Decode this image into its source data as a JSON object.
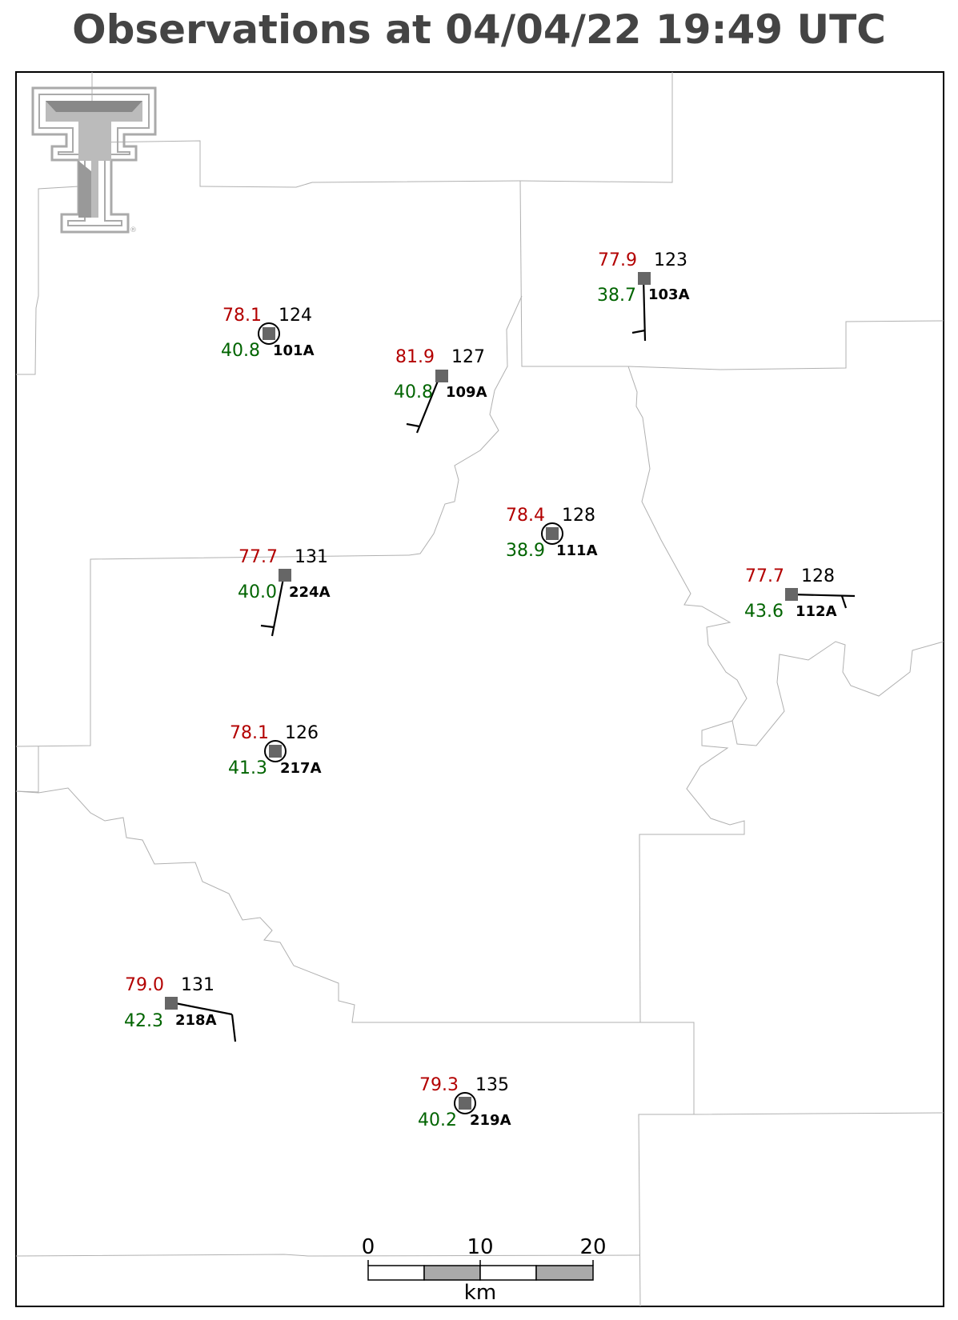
{
  "title": "Observations at 04/04/22 19:49 UTC",
  "colors": {
    "temperature": "#b30000",
    "dewpoint": "#006400",
    "pressure": "#000000",
    "station_id": "#000000",
    "station_marker": "#666666",
    "county_lines": "#b0b0b0",
    "logo": "#aaaaaa"
  },
  "logo": {
    "name": "Texas Tech Double T",
    "icon": "double-t-logo",
    "mark": "®"
  },
  "stations": [
    {
      "id": "101A",
      "temp": "78.1",
      "dewpoint": "40.8",
      "pressure": "124",
      "wind": "calm"
    },
    {
      "id": "109A",
      "temp": "81.9",
      "dewpoint": "40.8",
      "pressure": "127",
      "wind": "barb"
    },
    {
      "id": "103A",
      "temp": "77.9",
      "dewpoint": "38.7",
      "pressure": "123",
      "wind": "barb"
    },
    {
      "id": "111A",
      "temp": "78.4",
      "dewpoint": "38.9",
      "pressure": "128",
      "wind": "calm"
    },
    {
      "id": "224A",
      "temp": "77.7",
      "dewpoint": "40.0",
      "pressure": "131",
      "wind": "barb"
    },
    {
      "id": "112A",
      "temp": "77.7",
      "dewpoint": "43.6",
      "pressure": "128",
      "wind": "barb"
    },
    {
      "id": "217A",
      "temp": "78.1",
      "dewpoint": "41.3",
      "pressure": "126",
      "wind": "calm"
    },
    {
      "id": "218A",
      "temp": "79.0",
      "dewpoint": "42.3",
      "pressure": "131",
      "wind": "barb"
    },
    {
      "id": "219A",
      "temp": "79.3",
      "dewpoint": "40.2",
      "pressure": "135",
      "wind": "calm"
    }
  ],
  "scale_bar": {
    "ticks": [
      "0",
      "10",
      "20"
    ],
    "unit": "km"
  }
}
